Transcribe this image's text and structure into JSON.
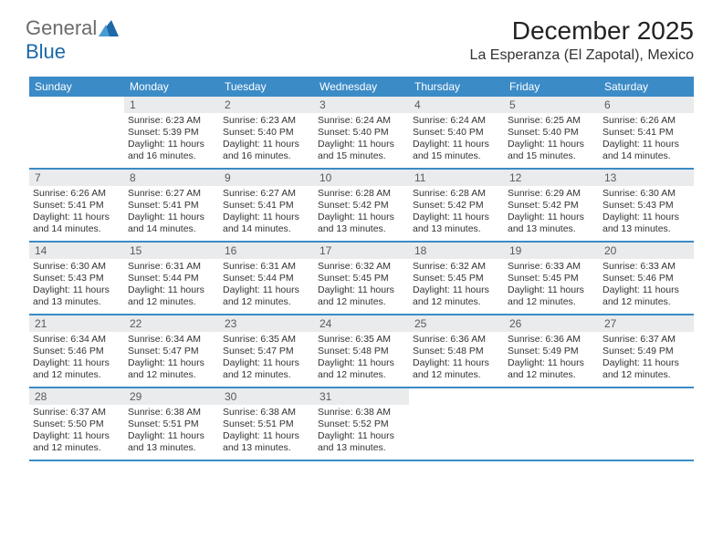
{
  "brand": {
    "name1": "General",
    "name2": "Blue"
  },
  "colors": {
    "header_bg": "#3b8bc7",
    "daynum_bg": "#e9ebec",
    "text": "#333333",
    "brand_gray": "#6b6b6b",
    "brand_blue": "#1c68a8",
    "divider": "#3b8bc7",
    "white": "#ffffff"
  },
  "month": "December 2025",
  "location": "La Esperanza (El Zapotal), Mexico",
  "weekdays": [
    "Sunday",
    "Monday",
    "Tuesday",
    "Wednesday",
    "Thursday",
    "Friday",
    "Saturday"
  ],
  "weeks": [
    [
      null,
      {
        "n": "1",
        "sr": "6:23 AM",
        "ss": "5:39 PM",
        "dl": "11 hours and 16 minutes."
      },
      {
        "n": "2",
        "sr": "6:23 AM",
        "ss": "5:40 PM",
        "dl": "11 hours and 16 minutes."
      },
      {
        "n": "3",
        "sr": "6:24 AM",
        "ss": "5:40 PM",
        "dl": "11 hours and 15 minutes."
      },
      {
        "n": "4",
        "sr": "6:24 AM",
        "ss": "5:40 PM",
        "dl": "11 hours and 15 minutes."
      },
      {
        "n": "5",
        "sr": "6:25 AM",
        "ss": "5:40 PM",
        "dl": "11 hours and 15 minutes."
      },
      {
        "n": "6",
        "sr": "6:26 AM",
        "ss": "5:41 PM",
        "dl": "11 hours and 14 minutes."
      }
    ],
    [
      {
        "n": "7",
        "sr": "6:26 AM",
        "ss": "5:41 PM",
        "dl": "11 hours and 14 minutes."
      },
      {
        "n": "8",
        "sr": "6:27 AM",
        "ss": "5:41 PM",
        "dl": "11 hours and 14 minutes."
      },
      {
        "n": "9",
        "sr": "6:27 AM",
        "ss": "5:41 PM",
        "dl": "11 hours and 14 minutes."
      },
      {
        "n": "10",
        "sr": "6:28 AM",
        "ss": "5:42 PM",
        "dl": "11 hours and 13 minutes."
      },
      {
        "n": "11",
        "sr": "6:28 AM",
        "ss": "5:42 PM",
        "dl": "11 hours and 13 minutes."
      },
      {
        "n": "12",
        "sr": "6:29 AM",
        "ss": "5:42 PM",
        "dl": "11 hours and 13 minutes."
      },
      {
        "n": "13",
        "sr": "6:30 AM",
        "ss": "5:43 PM",
        "dl": "11 hours and 13 minutes."
      }
    ],
    [
      {
        "n": "14",
        "sr": "6:30 AM",
        "ss": "5:43 PM",
        "dl": "11 hours and 13 minutes."
      },
      {
        "n": "15",
        "sr": "6:31 AM",
        "ss": "5:44 PM",
        "dl": "11 hours and 12 minutes."
      },
      {
        "n": "16",
        "sr": "6:31 AM",
        "ss": "5:44 PM",
        "dl": "11 hours and 12 minutes."
      },
      {
        "n": "17",
        "sr": "6:32 AM",
        "ss": "5:45 PM",
        "dl": "11 hours and 12 minutes."
      },
      {
        "n": "18",
        "sr": "6:32 AM",
        "ss": "5:45 PM",
        "dl": "11 hours and 12 minutes."
      },
      {
        "n": "19",
        "sr": "6:33 AM",
        "ss": "5:45 PM",
        "dl": "11 hours and 12 minutes."
      },
      {
        "n": "20",
        "sr": "6:33 AM",
        "ss": "5:46 PM",
        "dl": "11 hours and 12 minutes."
      }
    ],
    [
      {
        "n": "21",
        "sr": "6:34 AM",
        "ss": "5:46 PM",
        "dl": "11 hours and 12 minutes."
      },
      {
        "n": "22",
        "sr": "6:34 AM",
        "ss": "5:47 PM",
        "dl": "11 hours and 12 minutes."
      },
      {
        "n": "23",
        "sr": "6:35 AM",
        "ss": "5:47 PM",
        "dl": "11 hours and 12 minutes."
      },
      {
        "n": "24",
        "sr": "6:35 AM",
        "ss": "5:48 PM",
        "dl": "11 hours and 12 minutes."
      },
      {
        "n": "25",
        "sr": "6:36 AM",
        "ss": "5:48 PM",
        "dl": "11 hours and 12 minutes."
      },
      {
        "n": "26",
        "sr": "6:36 AM",
        "ss": "5:49 PM",
        "dl": "11 hours and 12 minutes."
      },
      {
        "n": "27",
        "sr": "6:37 AM",
        "ss": "5:49 PM",
        "dl": "11 hours and 12 minutes."
      }
    ],
    [
      {
        "n": "28",
        "sr": "6:37 AM",
        "ss": "5:50 PM",
        "dl": "11 hours and 12 minutes."
      },
      {
        "n": "29",
        "sr": "6:38 AM",
        "ss": "5:51 PM",
        "dl": "11 hours and 13 minutes."
      },
      {
        "n": "30",
        "sr": "6:38 AM",
        "ss": "5:51 PM",
        "dl": "11 hours and 13 minutes."
      },
      {
        "n": "31",
        "sr": "6:38 AM",
        "ss": "5:52 PM",
        "dl": "11 hours and 13 minutes."
      },
      null,
      null,
      null
    ]
  ],
  "labels": {
    "sunrise": "Sunrise:",
    "sunset": "Sunset:",
    "daylight": "Daylight:"
  }
}
